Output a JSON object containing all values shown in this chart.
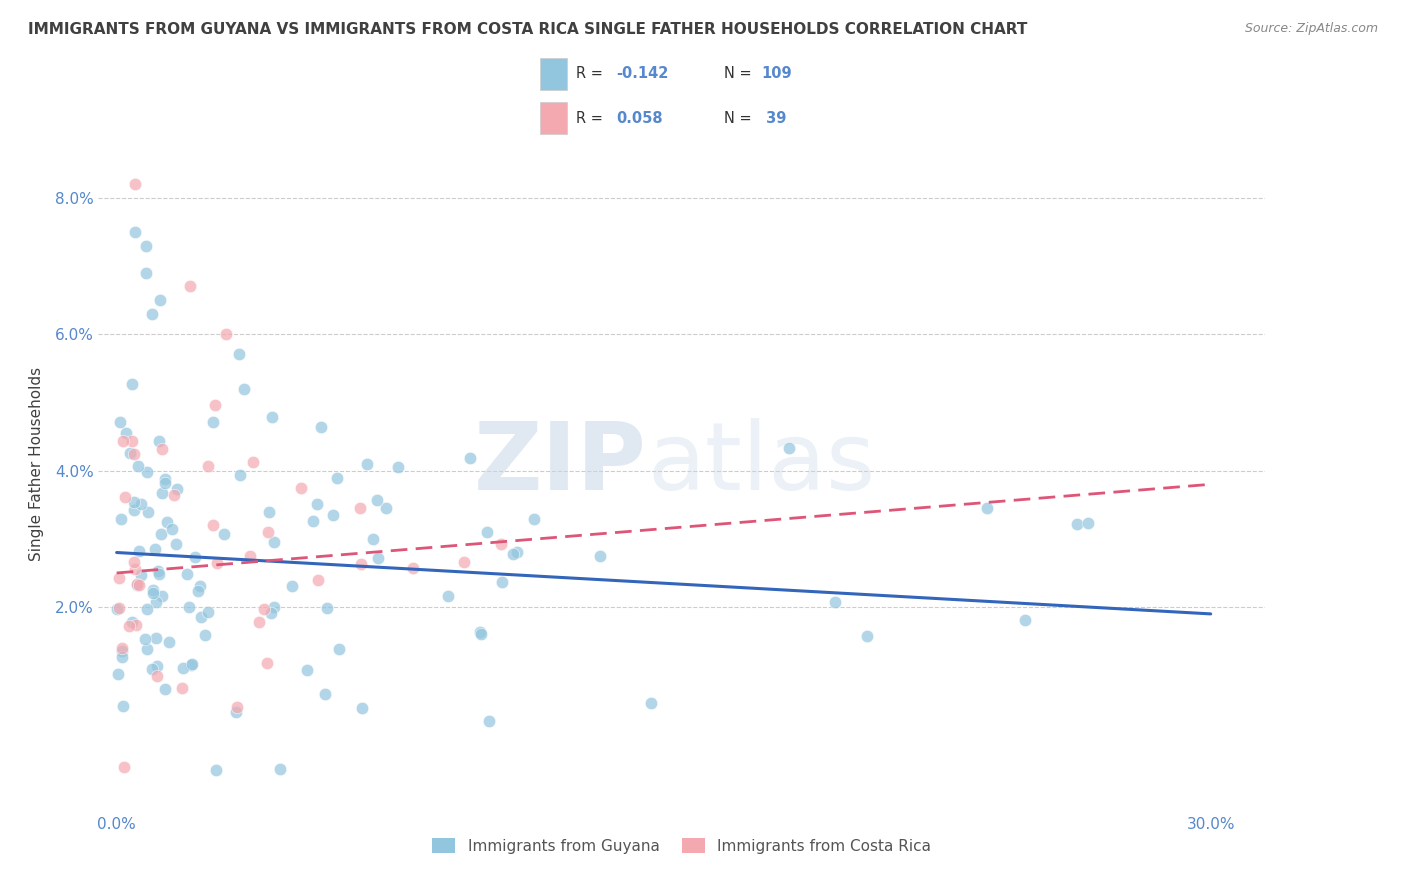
{
  "title": "IMMIGRANTS FROM GUYANA VS IMMIGRANTS FROM COSTA RICA SINGLE FATHER HOUSEHOLDS CORRELATION CHART",
  "source": "Source: ZipAtlas.com",
  "ylabel": "Single Father Households",
  "xlim": [
    -0.005,
    0.315
  ],
  "ylim": [
    -0.01,
    0.092
  ],
  "guyana_color": "#92c5de",
  "costa_rica_color": "#f4a8b0",
  "guyana_line_color": "#3366bb",
  "costa_rica_line_color": "#dd5577",
  "guyana_R": -0.142,
  "guyana_N": 109,
  "costa_rica_R": 0.058,
  "costa_rica_N": 39,
  "watermark_zip": "ZIP",
  "watermark_atlas": "atlas",
  "legend_label_guyana": "Immigrants from Guyana",
  "legend_label_costa_rica": "Immigrants from Costa Rica",
  "background_color": "#ffffff",
  "grid_color": "#cccccc",
  "title_color": "#404040",
  "axis_label_color": "#5588cc",
  "tick_label_color": "#5588cc",
  "yticks": [
    0.0,
    0.02,
    0.04,
    0.06,
    0.08
  ],
  "ytick_labels": [
    "",
    "2.0%",
    "4.0%",
    "6.0%",
    "8.0%"
  ],
  "xticks": [
    0.0,
    0.05,
    0.1,
    0.15,
    0.2,
    0.25,
    0.3
  ],
  "xtick_labels": [
    "0.0%",
    "",
    "",
    "",
    "",
    "",
    "30.0%"
  ],
  "guyana_trend_y0": 0.028,
  "guyana_trend_y1": 0.019,
  "costa_rica_trend_y0": 0.025,
  "costa_rica_trend_y1": 0.038
}
